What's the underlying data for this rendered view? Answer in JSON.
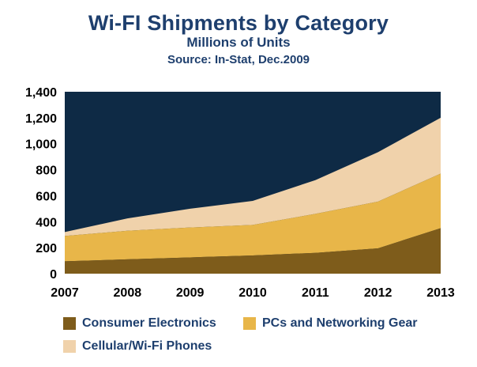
{
  "title": "Wi-FI Shipments by Category",
  "subtitle": "Millions of Units",
  "source": "Source: In-Stat, Dec.2009",
  "colors": {
    "plot_background": "#0e2a45",
    "text": "#1e3f6e",
    "consumer_electronics": "#7e5c1b",
    "pcs_networking": "#e8b649",
    "cellular_phones": "#f0d2ab"
  },
  "chart_data": {
    "type": "area",
    "stacked": true,
    "title": "Wi-FI Shipments by Category",
    "subtitle": "Millions of Units",
    "x": [
      "2007",
      "2008",
      "2009",
      "2010",
      "2011",
      "2012",
      "2013"
    ],
    "series": [
      {
        "name": "Consumer Electronics",
        "values": [
          95,
          110,
          125,
          140,
          160,
          195,
          350
        ]
      },
      {
        "name": "PCs and Networking Gear",
        "values": [
          195,
          220,
          230,
          235,
          300,
          360,
          420
        ]
      },
      {
        "name": "Cellular/Wi-Fi Phones",
        "values": [
          30,
          95,
          145,
          185,
          260,
          380,
          430
        ]
      }
    ],
    "ylim": [
      0,
      1400
    ],
    "yticks": [
      "0",
      "200",
      "400",
      "600",
      "800",
      "1,000",
      "1,200",
      "1,400"
    ],
    "ytick_values": [
      0,
      200,
      400,
      600,
      800,
      1000,
      1200,
      1400
    ],
    "grid": false,
    "legend_position": "bottom"
  },
  "legend": {
    "items": [
      {
        "label": "Consumer Electronics",
        "color": "#7e5c1b"
      },
      {
        "label": "PCs and Networking Gear",
        "color": "#e8b649"
      },
      {
        "label": "Cellular/Wi-Fi Phones",
        "color": "#f0d2ab"
      }
    ]
  }
}
